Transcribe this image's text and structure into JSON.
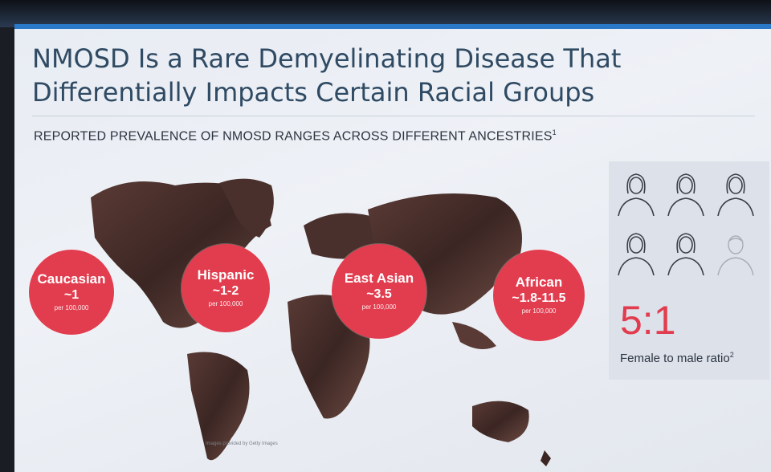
{
  "title_line1": "NMOSD Is a Rare Demyelinating Disease That",
  "title_line2": "Differentially Impacts Certain Racial Groups",
  "subtitle": "REPORTED PREVALENCE OF NMOSD RANGES ACROSS DIFFERENT ANCESTRIES",
  "subtitle_ref": "1",
  "colors": {
    "accent": "#e23d4f",
    "title": "#2f4a63",
    "topbar": "#2a78c8"
  },
  "groups": [
    {
      "name": "Caucasian",
      "value": "~1",
      "unit": "per 100,000"
    },
    {
      "name": "Hispanic",
      "value": "~1-2",
      "unit": "per 100,000"
    },
    {
      "name": "East Asian",
      "value": "~3.5",
      "unit": "per 100,000"
    },
    {
      "name": "African",
      "value": "~1.8-11.5",
      "unit": "per 100,000"
    }
  ],
  "sex_ratio": {
    "figures": [
      {
        "icon": "female-icon",
        "faded": false
      },
      {
        "icon": "female-icon",
        "faded": false
      },
      {
        "icon": "female-icon",
        "faded": false
      },
      {
        "icon": "female-icon",
        "faded": false
      },
      {
        "icon": "female-icon",
        "faded": false
      },
      {
        "icon": "male-icon",
        "faded": true
      }
    ],
    "ratio": "5:1",
    "label": "Female to male ratio",
    "label_ref": "2"
  },
  "image_credit": "Images provided by Getty Images"
}
